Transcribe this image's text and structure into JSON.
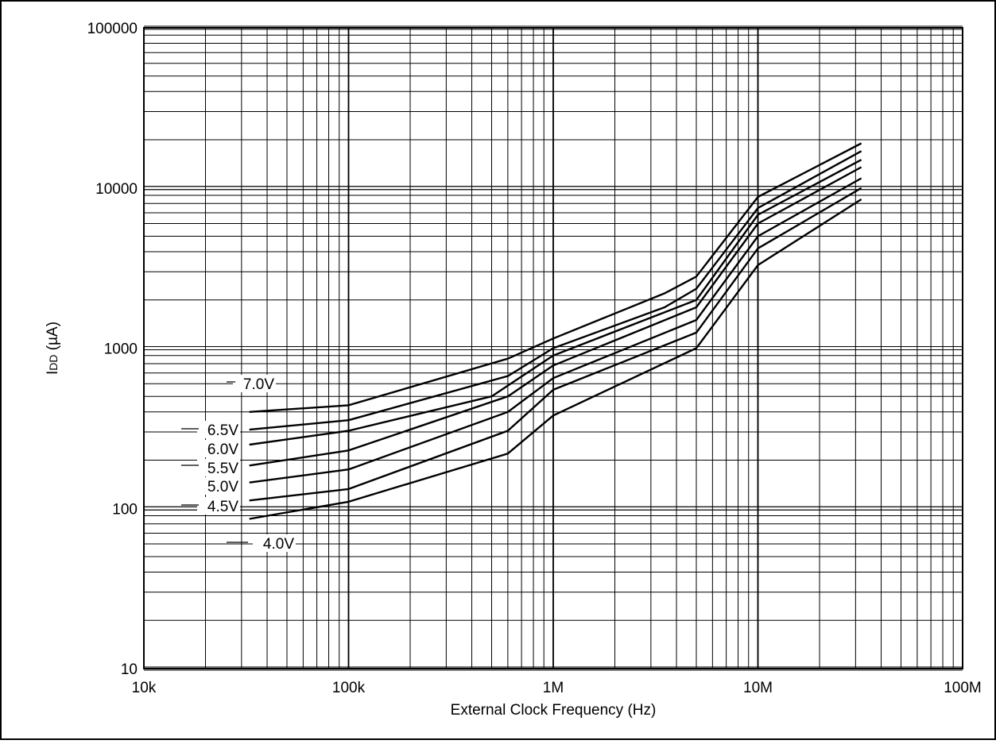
{
  "chart_data": {
    "type": "line",
    "title": "",
    "xlabel": "External Clock Frequency (Hz)",
    "ylabel": {
      "main": "I",
      "subscript": "DD",
      "unit": " (µA)"
    },
    "x_scale": "log",
    "y_scale": "log",
    "xlim": [
      10000,
      100000000
    ],
    "ylim": [
      10,
      100000
    ],
    "x_ticks": [
      {
        "value": 10000,
        "label": "10k"
      },
      {
        "value": 100000,
        "label": "100k"
      },
      {
        "value": 1000000,
        "label": "1M"
      },
      {
        "value": 10000000,
        "label": "10M"
      },
      {
        "value": 100000000,
        "label": "100M"
      }
    ],
    "y_ticks": [
      {
        "value": 10,
        "label": "10"
      },
      {
        "value": 100,
        "label": "100"
      },
      {
        "value": 1000,
        "label": "1000"
      },
      {
        "value": 10000,
        "label": "10000"
      },
      {
        "value": 100000,
        "label": "100000"
      }
    ],
    "grid": true,
    "legend": "inline labels at left end of curves",
    "series": [
      {
        "name": "7.0V",
        "x": [
          32768,
          100000,
          600000,
          1000000,
          3500000,
          5000000,
          10000000,
          32000000
        ],
        "y": [
          400,
          440,
          860,
          1150,
          2200,
          2800,
          8800,
          19000
        ]
      },
      {
        "name": "6.5V",
        "x": [
          32768,
          100000,
          600000,
          1000000,
          3500000,
          5000000,
          10000000,
          32000000
        ],
        "y": [
          310,
          355,
          670,
          1000,
          1800,
          2350,
          7500,
          17000
        ]
      },
      {
        "name": "6.0V",
        "x": [
          32768,
          100000,
          500000,
          1000000,
          5000000,
          10000000,
          32000000
        ],
        "y": [
          250,
          305,
          500,
          900,
          2000,
          6800,
          15000
        ]
      },
      {
        "name": "5.5V",
        "x": [
          32768,
          100000,
          600000,
          1000000,
          5000000,
          10000000,
          32000000
        ],
        "y": [
          185,
          230,
          500,
          780,
          1800,
          6000,
          13500
        ]
      },
      {
        "name": "5.0V",
        "x": [
          32768,
          100000,
          600000,
          1000000,
          5000000,
          10000000,
          32000000
        ],
        "y": [
          145,
          175,
          400,
          650,
          1500,
          5000,
          11500
        ]
      },
      {
        "name": "4.5V",
        "x": [
          32768,
          100000,
          600000,
          1000000,
          5000000,
          10000000,
          32000000
        ],
        "y": [
          112,
          132,
          305,
          550,
          1250,
          4200,
          10000
        ]
      },
      {
        "name": "4.0V",
        "x": [
          32768,
          100000,
          600000,
          1000000,
          5000000,
          10000000,
          32000000
        ],
        "y": [
          86,
          110,
          220,
          380,
          1000,
          3300,
          8500
        ]
      }
    ],
    "series_labels": [
      {
        "text": "7.0V",
        "series": "7.0V"
      },
      {
        "text": "6.5V",
        "series": "6.5V"
      },
      {
        "text": "6.0V",
        "series": "6.0V"
      },
      {
        "text": "5.5V",
        "series": "5.5V"
      },
      {
        "text": "5.0V",
        "series": "5.0V"
      },
      {
        "text": "4.5V",
        "series": "4.5V"
      },
      {
        "text": "4.0V",
        "series": "4.0V"
      }
    ]
  }
}
